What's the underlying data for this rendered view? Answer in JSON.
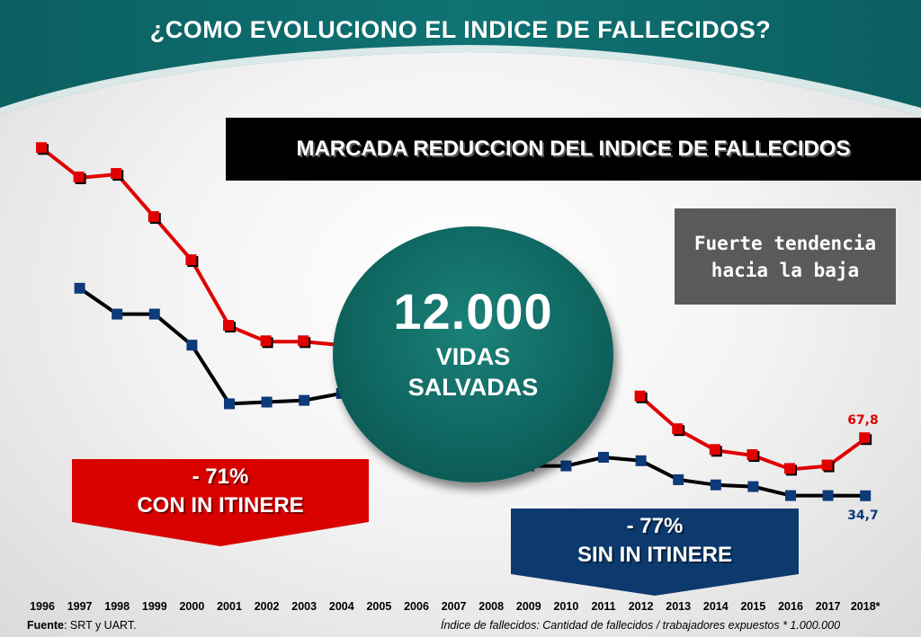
{
  "title": "¿COMO EVOLUCIONO EL INDICE DE FALLECIDOS?",
  "banner": "MARCADA REDUCCION DEL INDICE DE FALLECIDOS",
  "tendencia": {
    "line1": "Fuerte tendencia",
    "line2": "hacia la baja"
  },
  "circle": {
    "number": "12.000",
    "line1": "VIDAS",
    "line2": "SALVADAS"
  },
  "con_itinere": {
    "pct": "- 71%",
    "label": "CON IN ITINERE"
  },
  "sin_itinere": {
    "pct": "- 77%",
    "label": "SIN IN ITINERE"
  },
  "footer": {
    "fuente_label": "Fuente",
    "fuente_text": ": SRT y UART.",
    "nota": "Índice de fallecidos: Cantidad de fallecidos / trabajadores expuestos * 1.000.000"
  },
  "colors": {
    "teal": "#0d6e6e",
    "red": "#e00000",
    "navy": "#0d3a78",
    "black": "#000000"
  },
  "chart_data": {
    "type": "line",
    "categories": [
      "1996",
      "1997",
      "1998",
      "1999",
      "2000",
      "2001",
      "2002",
      "2003",
      "2004",
      "2005",
      "2006",
      "2007",
      "2008",
      "2009",
      "2010",
      "2011",
      "2012",
      "2013",
      "2014",
      "2015",
      "2016",
      "2017",
      "2018*"
    ],
    "ylim": [
      20,
      245
    ],
    "series": [
      {
        "key": "con",
        "color": "#e00000",
        "marker": "#e00000",
        "values": [
          236,
          219,
          221,
          196,
          171,
          133,
          124,
          124,
          122,
          null,
          null,
          null,
          null,
          null,
          null,
          null,
          92,
          73,
          61,
          58,
          50,
          52,
          67.8
        ],
        "end_label": "67,8"
      },
      {
        "key": "sin",
        "color": "#000000",
        "marker": "#0d3a78",
        "values": [
          null,
          155,
          140,
          140,
          122,
          88,
          89,
          90,
          94,
          null,
          null,
          null,
          null,
          52,
          52,
          57,
          55,
          44,
          41,
          40,
          34.8,
          34.8,
          34.7
        ],
        "end_label": "34,7"
      }
    ]
  }
}
